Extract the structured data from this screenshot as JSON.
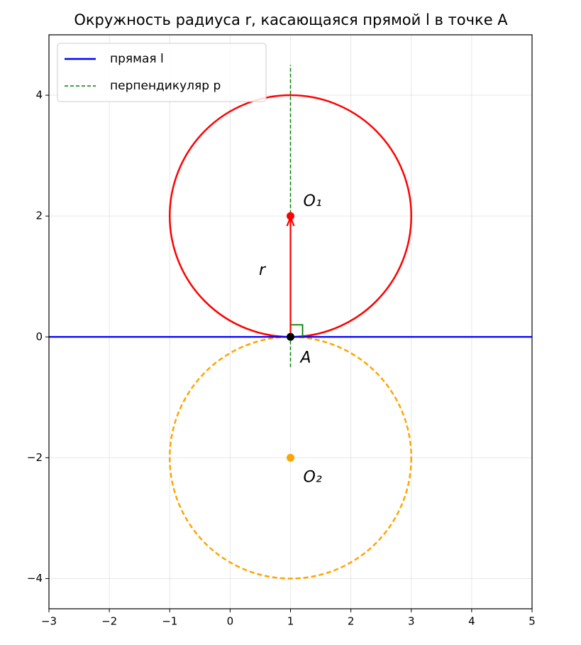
{
  "chart_data": {
    "type": "geometry",
    "title": "Окружность радиуса r, касающаяся прямой l в точке A",
    "xlim": [
      -3,
      5
    ],
    "ylim": [
      -4.5,
      5
    ],
    "xticks": [
      {
        "value": -3,
        "label": "−3"
      },
      {
        "value": -2,
        "label": "−2"
      },
      {
        "value": -1,
        "label": "−1"
      },
      0,
      1,
      2,
      3,
      4,
      5
    ],
    "yticks": [
      {
        "value": -4,
        "label": "−4"
      },
      {
        "value": -2,
        "label": "−2"
      },
      0,
      2,
      4
    ],
    "grid": true,
    "legend": "upper left",
    "lines": [
      {
        "name": "прямая l",
        "color": "#0000ff",
        "style": "solid",
        "x": [
          -3,
          5
        ],
        "y": [
          0,
          0
        ]
      },
      {
        "name": "перпендикуляр p",
        "color": "#008000",
        "style": "dashed",
        "x": [
          1,
          1
        ],
        "y": [
          -0.5,
          4.5
        ]
      }
    ],
    "circles": [
      {
        "center": [
          1,
          2
        ],
        "radius": 2,
        "color": "#ff0000",
        "style": "solid"
      },
      {
        "center": [
          1,
          -2
        ],
        "radius": 2,
        "color": "#ffa500",
        "style": "dashed"
      }
    ],
    "right_angle": {
      "x": 1,
      "y": 0,
      "size": 0.2,
      "color": "#008000"
    },
    "arrow": {
      "x": [
        1,
        1
      ],
      "y": [
        0,
        2
      ],
      "color": "#ff0000",
      "label": "r"
    },
    "points": [
      {
        "x": 1,
        "y": 2,
        "color": "#ff0000",
        "label": "O₁"
      },
      {
        "x": 1,
        "y": -2,
        "color": "#ffa500",
        "label": "O₂"
      },
      {
        "x": 1,
        "y": 0,
        "color": "#000000",
        "label": "A"
      }
    ]
  }
}
